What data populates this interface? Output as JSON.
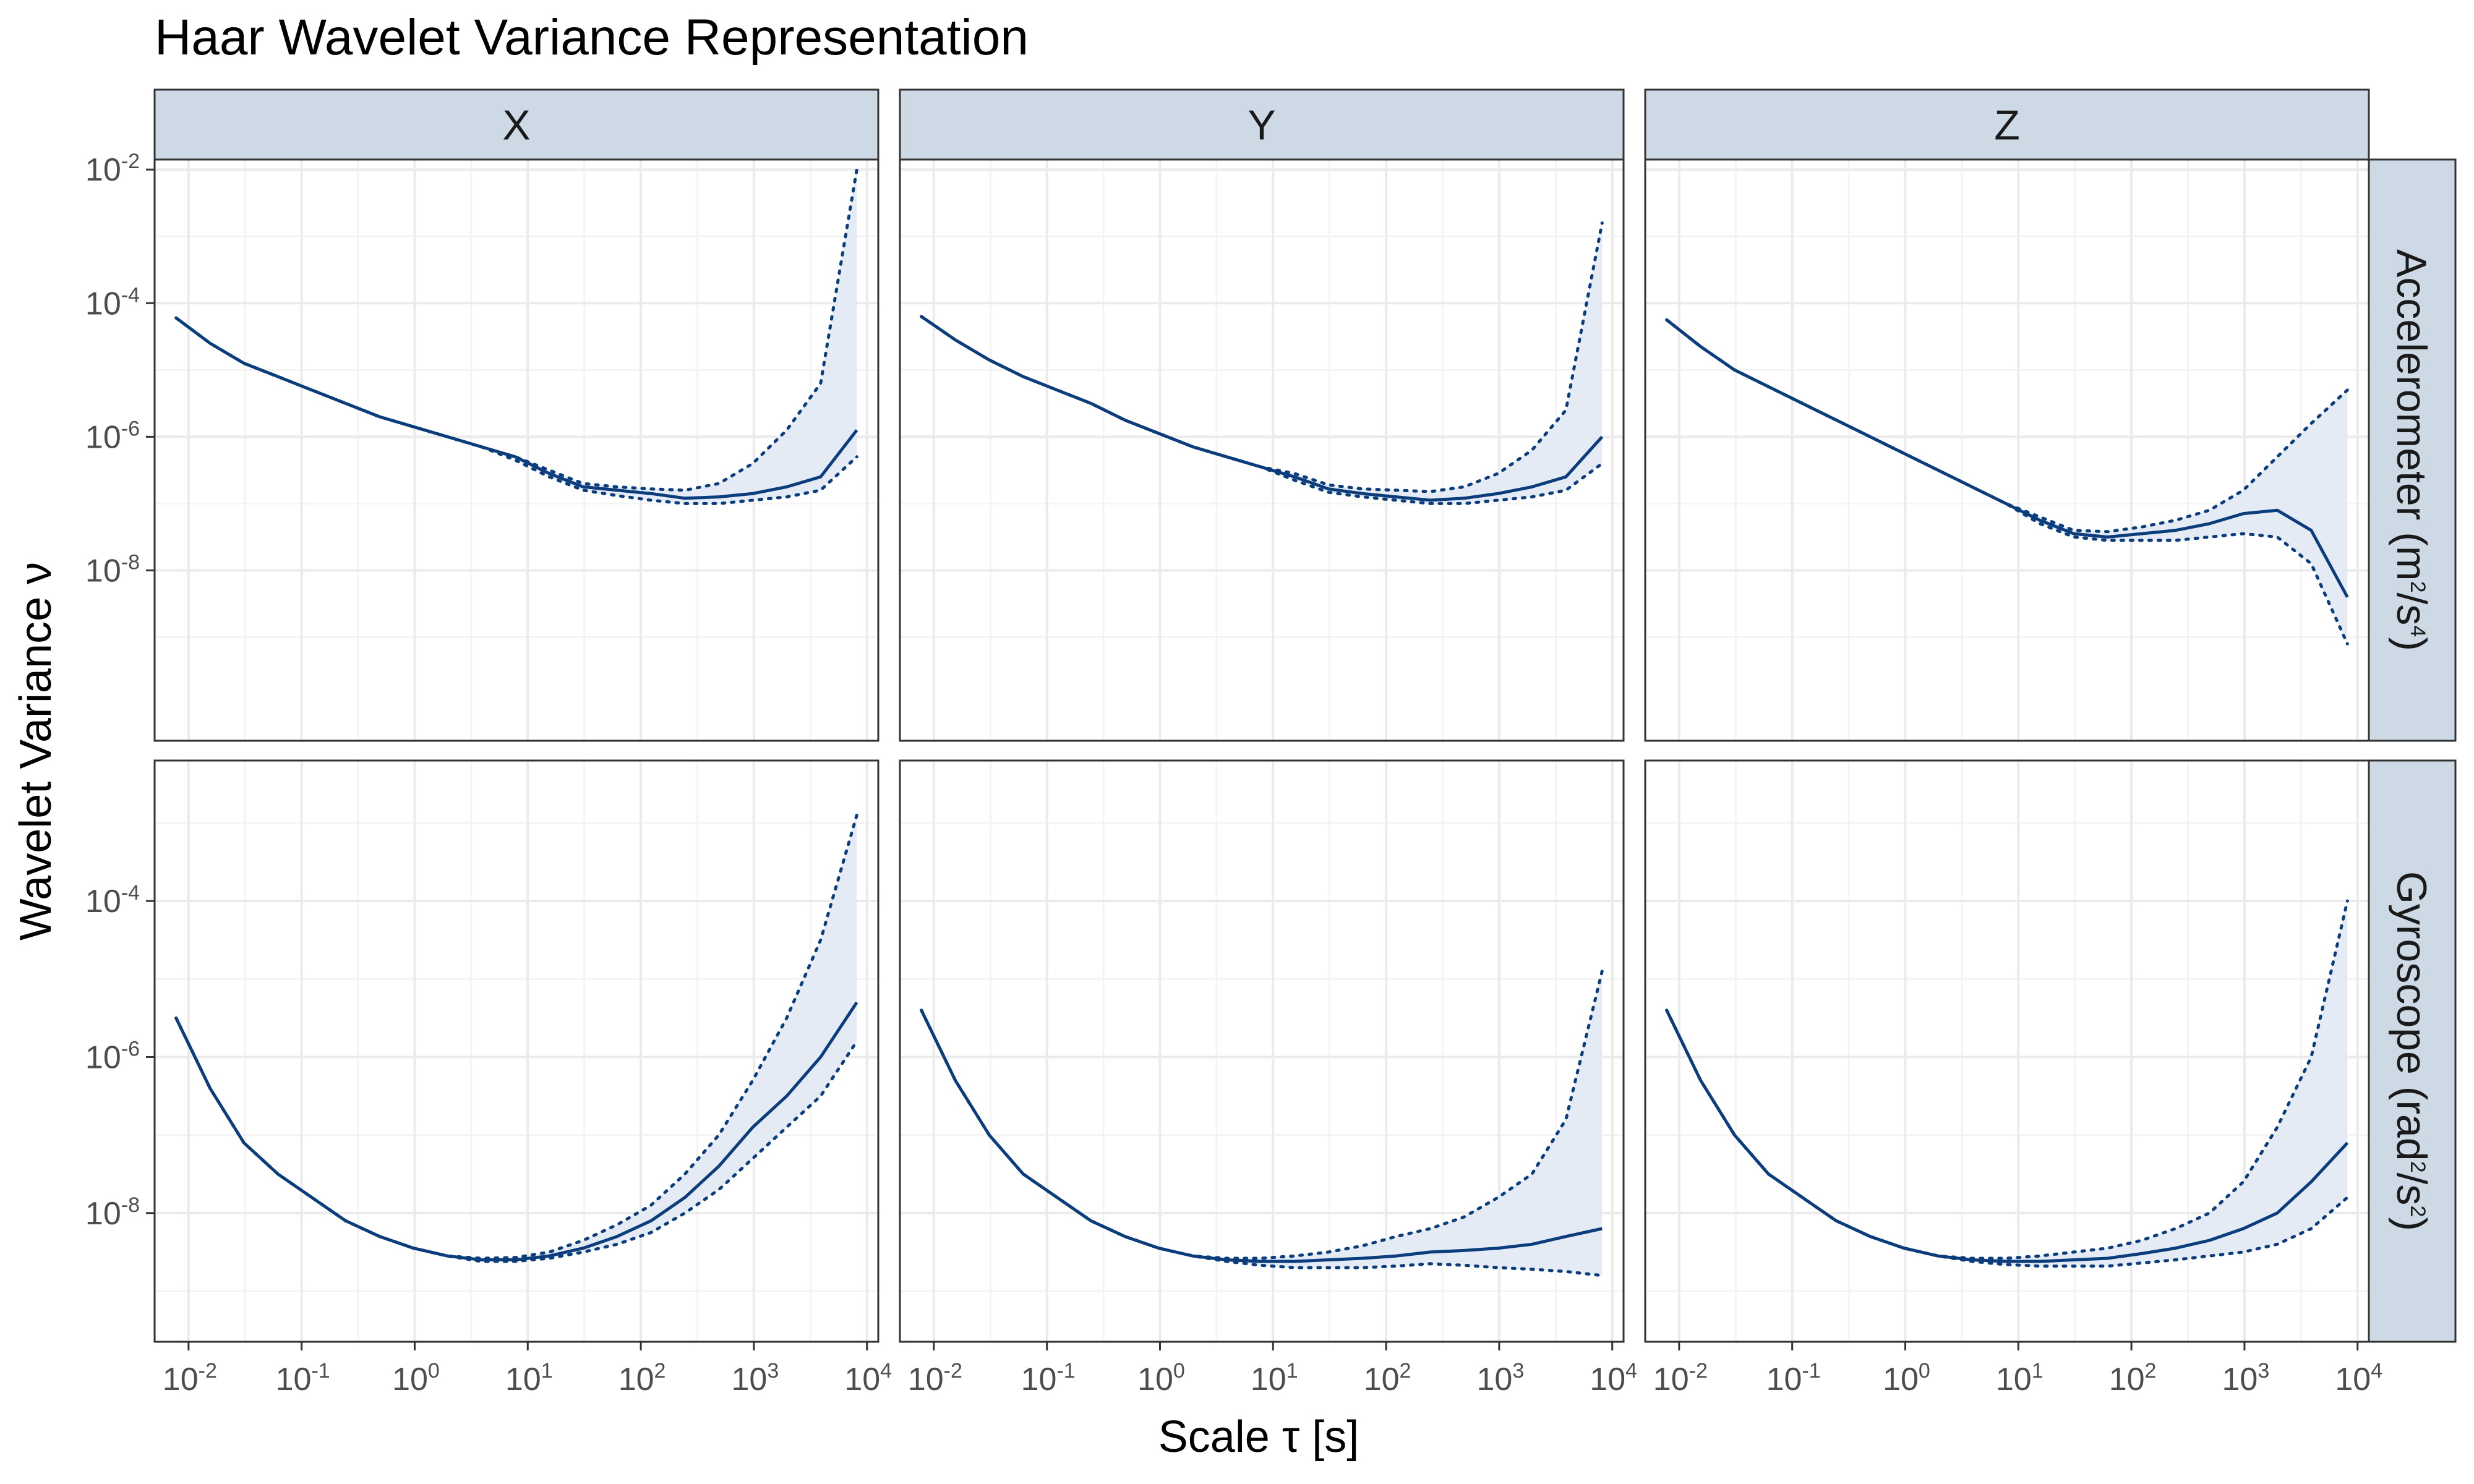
{
  "title": "Haar Wavelet Variance Representation",
  "colors": {
    "line": "#0b3c7b",
    "band": "#e3eaf3",
    "strip": "#cdd9e5",
    "grid_major": "#ebebeb",
    "grid_minor": "#f4f4f4"
  },
  "axes": {
    "xlabel_main": "Scale ",
    "xlabel_greek": "τ",
    "xlabel_unit": " [s]",
    "ylabel": "Wavelet Variance ν"
  },
  "columns": [
    "X",
    "Y",
    "Z"
  ],
  "rows": [
    {
      "label_main": "Accelerometer (m",
      "sup1": "2",
      "label_mid": "/s",
      "sup2": "4",
      "label_end": ")"
    },
    {
      "label_main": "Gyroscope (rad",
      "sup1": "2",
      "label_mid": "/s",
      "sup2": "2",
      "label_end": ")"
    }
  ],
  "x_ticks": [
    {
      "base": "10",
      "exp": "-2",
      "value": -2
    },
    {
      "base": "10",
      "exp": "-1",
      "value": -1
    },
    {
      "base": "10",
      "exp": "0",
      "value": 0
    },
    {
      "base": "10",
      "exp": "1",
      "value": 1
    },
    {
      "base": "10",
      "exp": "2",
      "value": 2
    },
    {
      "base": "10",
      "exp": "3",
      "value": 3
    },
    {
      "base": "10",
      "exp": "4",
      "value": 4
    }
  ],
  "row_y_ticks": [
    [
      {
        "base": "10",
        "exp": "-2",
        "value": -2
      },
      {
        "base": "10",
        "exp": "-4",
        "value": -4
      },
      {
        "base": "10",
        "exp": "-6",
        "value": -6
      },
      {
        "base": "10",
        "exp": "-8",
        "value": -8
      }
    ],
    [
      {
        "base": "10",
        "exp": "-4",
        "value": -4
      },
      {
        "base": "10",
        "exp": "-6",
        "value": -6
      },
      {
        "base": "10",
        "exp": "-8",
        "value": -8
      }
    ]
  ],
  "chart_data": {
    "type": "line",
    "x_scale": "log10",
    "y_scale": "log10",
    "x_log10": [
      -2.11,
      -1.81,
      -1.51,
      -1.21,
      -0.91,
      -0.61,
      -0.31,
      -0.01,
      0.29,
      0.59,
      0.89,
      1.19,
      1.49,
      1.79,
      2.09,
      2.39,
      2.69,
      2.99,
      3.29,
      3.59,
      3.91
    ],
    "xlim_log10": [
      -2.3,
      4.1
    ],
    "row_ylim_log10": [
      [
        -10.55,
        -1.85
      ],
      [
        -9.65,
        -2.2
      ]
    ],
    "grid": true,
    "series_style": "solid = wavelet variance estimate; dotted = confidence bounds; shaded band between bounds",
    "panels": [
      {
        "row": 0,
        "col": 0,
        "center": [
          -4.22,
          -4.6,
          -4.9,
          -5.1,
          -5.3,
          -5.5,
          -5.7,
          -5.85,
          -6.0,
          -6.15,
          -6.3,
          -6.55,
          -6.75,
          -6.8,
          -6.85,
          -6.92,
          -6.9,
          -6.85,
          -6.75,
          -6.6,
          -5.9
        ],
        "lower": [
          -4.22,
          -4.6,
          -4.9,
          -5.1,
          -5.3,
          -5.5,
          -5.7,
          -5.85,
          -6.0,
          -6.15,
          -6.35,
          -6.6,
          -6.8,
          -6.88,
          -6.95,
          -7.0,
          -7.0,
          -6.95,
          -6.9,
          -6.8,
          -6.3
        ],
        "upper": [
          -4.22,
          -4.6,
          -4.9,
          -5.1,
          -5.3,
          -5.5,
          -5.7,
          -5.85,
          -6.0,
          -6.15,
          -6.3,
          -6.5,
          -6.7,
          -6.75,
          -6.78,
          -6.8,
          -6.7,
          -6.4,
          -5.9,
          -5.2,
          -2.0
        ]
      },
      {
        "row": 0,
        "col": 1,
        "center": [
          -4.2,
          -4.55,
          -4.85,
          -5.1,
          -5.3,
          -5.5,
          -5.75,
          -5.95,
          -6.15,
          -6.3,
          -6.45,
          -6.6,
          -6.78,
          -6.85,
          -6.9,
          -6.95,
          -6.92,
          -6.85,
          -6.75,
          -6.6,
          -6.0
        ],
        "lower": [
          -4.2,
          -4.55,
          -4.85,
          -5.1,
          -5.3,
          -5.5,
          -5.75,
          -5.95,
          -6.15,
          -6.3,
          -6.45,
          -6.65,
          -6.83,
          -6.9,
          -6.95,
          -7.0,
          -7.0,
          -6.95,
          -6.9,
          -6.8,
          -6.4
        ],
        "upper": [
          -4.2,
          -4.55,
          -4.85,
          -5.1,
          -5.3,
          -5.5,
          -5.75,
          -5.95,
          -6.15,
          -6.3,
          -6.45,
          -6.55,
          -6.72,
          -6.78,
          -6.8,
          -6.82,
          -6.75,
          -6.55,
          -6.2,
          -5.6,
          -2.8
        ]
      },
      {
        "row": 0,
        "col": 2,
        "center": [
          -4.25,
          -4.65,
          -5.0,
          -5.25,
          -5.5,
          -5.75,
          -6.0,
          -6.25,
          -6.5,
          -6.75,
          -7.0,
          -7.25,
          -7.45,
          -7.5,
          -7.45,
          -7.4,
          -7.3,
          -7.15,
          -7.1,
          -7.4,
          -8.4
        ],
        "lower": [
          -4.25,
          -4.65,
          -5.0,
          -5.25,
          -5.5,
          -5.75,
          -6.0,
          -6.25,
          -6.5,
          -6.75,
          -7.0,
          -7.3,
          -7.5,
          -7.55,
          -7.55,
          -7.55,
          -7.5,
          -7.45,
          -7.5,
          -7.9,
          -9.1
        ],
        "upper": [
          -4.25,
          -4.65,
          -5.0,
          -5.25,
          -5.5,
          -5.75,
          -6.0,
          -6.25,
          -6.5,
          -6.75,
          -7.0,
          -7.2,
          -7.4,
          -7.42,
          -7.35,
          -7.25,
          -7.1,
          -6.8,
          -6.3,
          -5.8,
          -5.3
        ]
      },
      {
        "row": 1,
        "col": 0,
        "center": [
          -5.5,
          -6.4,
          -7.1,
          -7.5,
          -7.8,
          -8.1,
          -8.3,
          -8.45,
          -8.55,
          -8.6,
          -8.6,
          -8.55,
          -8.45,
          -8.3,
          -8.1,
          -7.8,
          -7.4,
          -6.9,
          -6.5,
          -6.0,
          -5.3
        ],
        "lower": [
          -5.5,
          -6.4,
          -7.1,
          -7.5,
          -7.8,
          -8.1,
          -8.3,
          -8.45,
          -8.55,
          -8.62,
          -8.62,
          -8.58,
          -8.5,
          -8.4,
          -8.25,
          -8.0,
          -7.7,
          -7.3,
          -6.9,
          -6.5,
          -5.8
        ],
        "upper": [
          -5.5,
          -6.4,
          -7.1,
          -7.5,
          -7.8,
          -8.1,
          -8.3,
          -8.45,
          -8.55,
          -8.58,
          -8.57,
          -8.5,
          -8.35,
          -8.15,
          -7.9,
          -7.5,
          -7.0,
          -6.3,
          -5.5,
          -4.5,
          -2.9
        ]
      },
      {
        "row": 1,
        "col": 1,
        "center": [
          -5.4,
          -6.3,
          -7.0,
          -7.5,
          -7.8,
          -8.1,
          -8.3,
          -8.45,
          -8.55,
          -8.6,
          -8.62,
          -8.62,
          -8.6,
          -8.58,
          -8.55,
          -8.5,
          -8.48,
          -8.45,
          -8.4,
          -8.3,
          -8.2
        ],
        "lower": [
          -5.4,
          -6.3,
          -7.0,
          -7.5,
          -7.8,
          -8.1,
          -8.3,
          -8.45,
          -8.55,
          -8.62,
          -8.67,
          -8.7,
          -8.7,
          -8.7,
          -8.68,
          -8.65,
          -8.67,
          -8.7,
          -8.72,
          -8.75,
          -8.8
        ],
        "upper": [
          -5.4,
          -6.3,
          -7.0,
          -7.5,
          -7.8,
          -8.1,
          -8.3,
          -8.45,
          -8.55,
          -8.58,
          -8.58,
          -8.55,
          -8.5,
          -8.42,
          -8.3,
          -8.2,
          -8.05,
          -7.8,
          -7.5,
          -6.8,
          -4.9
        ]
      },
      {
        "row": 1,
        "col": 2,
        "center": [
          -5.4,
          -6.3,
          -7.0,
          -7.5,
          -7.8,
          -8.1,
          -8.3,
          -8.45,
          -8.55,
          -8.6,
          -8.62,
          -8.62,
          -8.6,
          -8.58,
          -8.52,
          -8.45,
          -8.35,
          -8.2,
          -8.0,
          -7.6,
          -7.1
        ],
        "lower": [
          -5.4,
          -6.3,
          -7.0,
          -7.5,
          -7.8,
          -8.1,
          -8.3,
          -8.45,
          -8.55,
          -8.62,
          -8.66,
          -8.68,
          -8.68,
          -8.68,
          -8.64,
          -8.6,
          -8.55,
          -8.5,
          -8.4,
          -8.2,
          -7.8
        ],
        "upper": [
          -5.4,
          -6.3,
          -7.0,
          -7.5,
          -7.8,
          -8.1,
          -8.3,
          -8.45,
          -8.55,
          -8.58,
          -8.58,
          -8.55,
          -8.5,
          -8.45,
          -8.35,
          -8.2,
          -8.0,
          -7.6,
          -6.9,
          -6.0,
          -4.0
        ]
      }
    ]
  }
}
